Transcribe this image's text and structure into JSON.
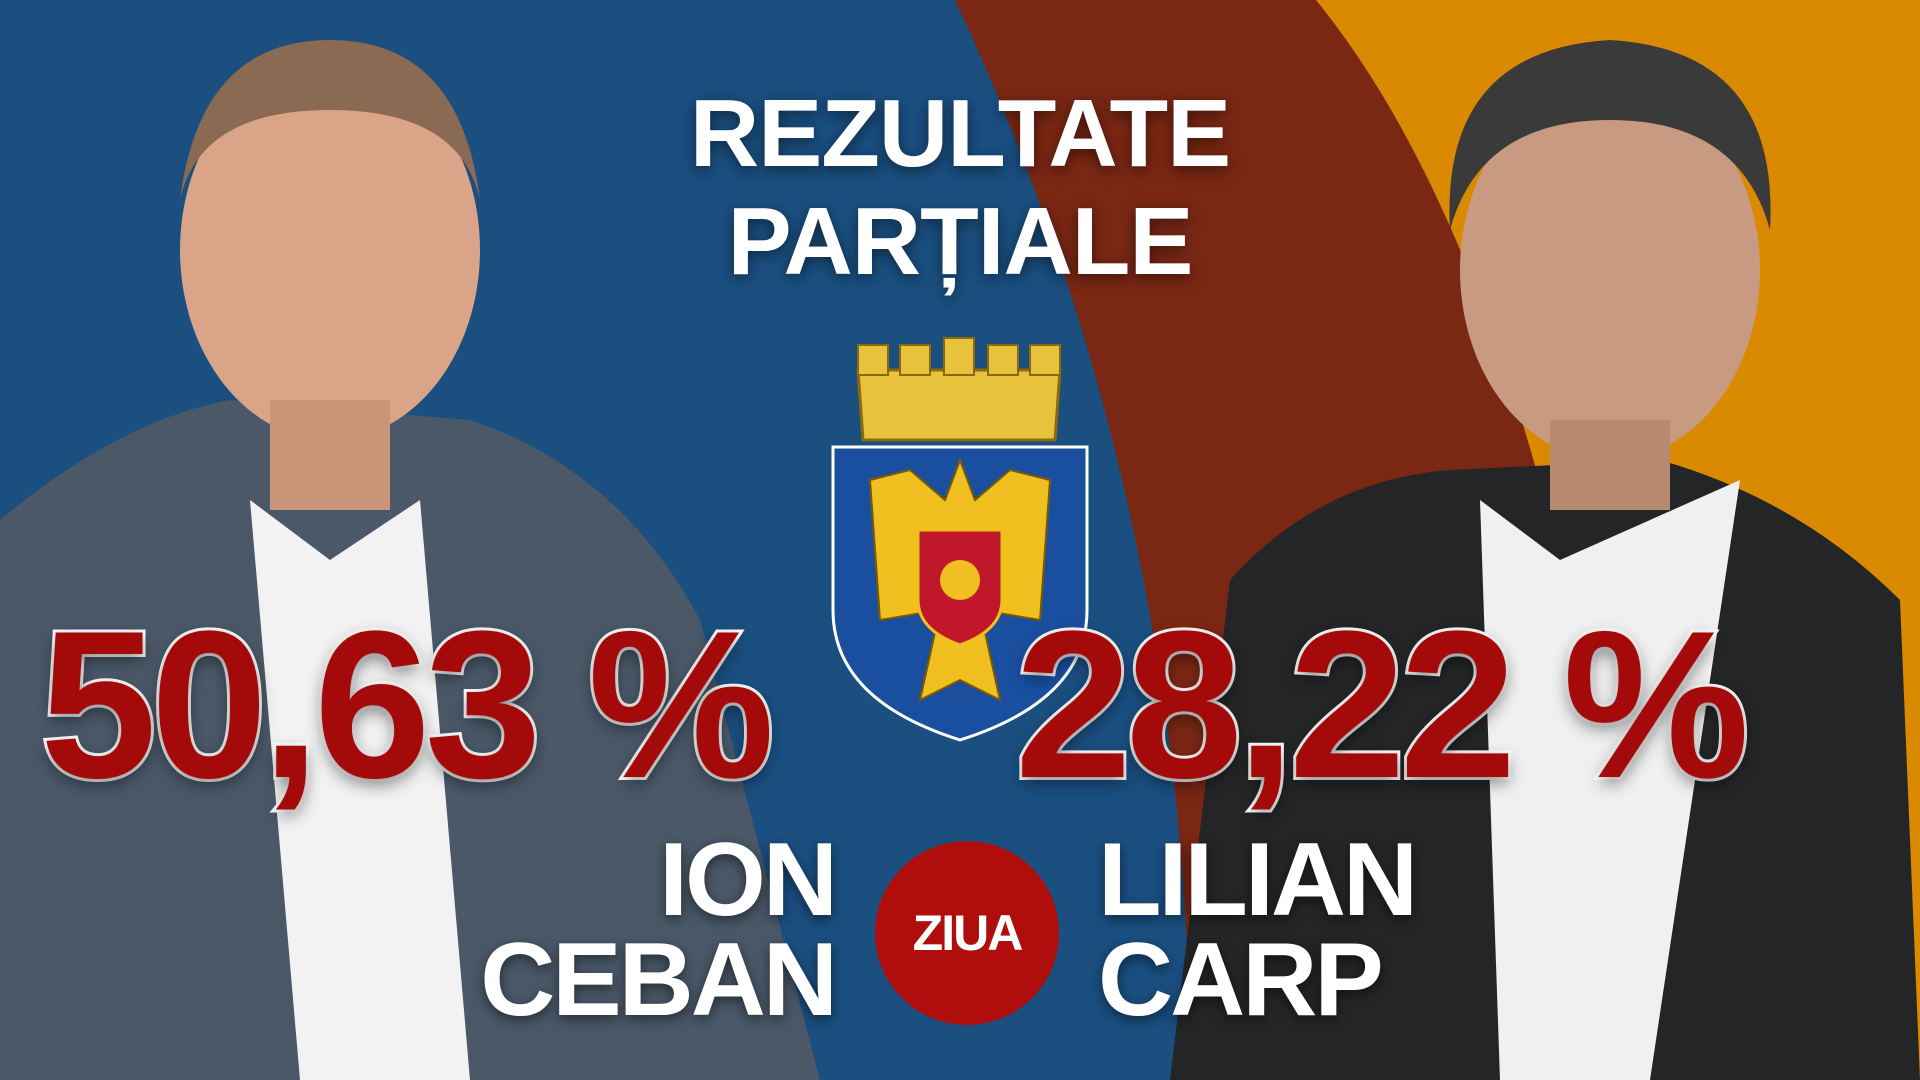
{
  "title": {
    "line1": "REZULTATE",
    "line2": "PARȚIALE"
  },
  "candidates": [
    {
      "first_name": "ION",
      "last_name": "CEBAN",
      "percent": "50,63 %"
    },
    {
      "first_name": "LILIAN",
      "last_name": "CARP",
      "percent": "28,22 %"
    }
  ],
  "logo": {
    "text": "ZIUA"
  },
  "colors": {
    "blue": "#1a4f80",
    "maroon": "#7a2714",
    "orange": "#d98a00",
    "percent_red": "#a50a0a",
    "logo_red": "#b00d0d"
  }
}
